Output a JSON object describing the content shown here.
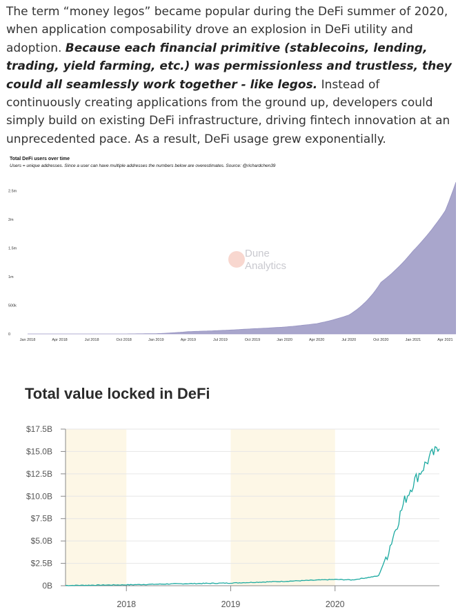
{
  "article": {
    "sentence1": "The term “money legos” became popular during the DeFi summer of 2020, when application composability drove an explosion in DeFi utility and adoption.",
    "emphasis": "Because each financial primitive (stablecoins, lending, trading, yield farming, etc.) was permissionless and trustless, they could all seamlessly work together - like legos.",
    "rest": "Instead of continuously creating applications from the ground up, developers could simply build on existing DeFi infrastructure, driving fintech innovation at an unprecedented pace. As a result, DeFi usage grew exponentially."
  },
  "chart_data": [
    {
      "type": "area",
      "title": "Total DeFi users over time",
      "subtitle": "Users = unique addresses. Since a user can have multiple addresses the numbers below are overestimates. Source: @richardchen39",
      "watermark": [
        "Dune",
        "Analytics"
      ],
      "color": "#a9a6cc",
      "x": [
        "Jan 2018",
        "Apr 2018",
        "Jul 2018",
        "Oct 2018",
        "Jan 2019",
        "Apr 2019",
        "Jul 2019",
        "Oct 2019",
        "Jan 2020",
        "Apr 2020",
        "Jul 2020",
        "Oct 2020",
        "Jan 2021",
        "Apr 2021",
        "May 2021"
      ],
      "y": [
        0,
        0,
        0,
        0,
        5000,
        40000,
        60000,
        90000,
        120000,
        180000,
        330000,
        900000,
        1450000,
        2150000,
        2650000
      ],
      "yticks": [
        0,
        500000,
        1000000,
        1500000,
        2000000,
        2500000
      ],
      "yticklabels": [
        "0",
        "500k",
        "1m",
        "1.5m",
        "2m",
        "2.5m"
      ],
      "ylim": [
        0,
        2650000
      ],
      "grid": false
    },
    {
      "type": "line",
      "title": "Total value locked in DeFi",
      "color": "#1aa9a0",
      "x": [
        "2017-06",
        "2018-01",
        "2018-06",
        "2019-01",
        "2019-06",
        "2020-01",
        "2020-03",
        "2020-06",
        "2020-07",
        "2020-08",
        "2020-09",
        "2020-10",
        "2020-11",
        "2020-12",
        "2021-01"
      ],
      "y": [
        0.03,
        0.1,
        0.2,
        0.3,
        0.45,
        0.7,
        0.65,
        1.1,
        3.5,
        6.5,
        9.5,
        11.5,
        13.0,
        14.5,
        15.3
      ],
      "yticks": [
        0,
        2.5,
        5,
        7.5,
        10,
        12.5,
        15,
        17.5
      ],
      "yticklabels": [
        "0B",
        "$2.5B",
        "$5.0B",
        "$7.5B",
        "$10.0B",
        "$12.5B",
        "$15.0B",
        "$17.5B"
      ],
      "xticklabels": [
        "2018",
        "2019",
        "2020"
      ],
      "ylim": [
        0,
        17.5
      ],
      "grid": true
    }
  ]
}
